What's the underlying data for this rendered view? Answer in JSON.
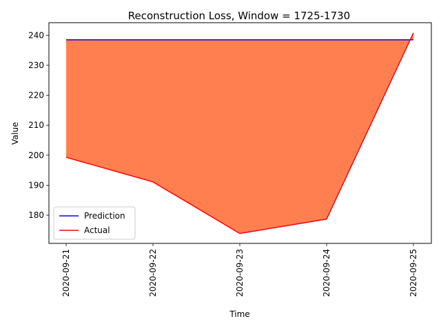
{
  "chart_data": {
    "type": "line",
    "title": "Reconstruction Loss, Window = 1725-1730",
    "xlabel": "Time",
    "ylabel": "Value",
    "x": [
      "2020-09-21",
      "2020-09-22",
      "2020-09-23",
      "2020-09-24",
      "2020-09-25"
    ],
    "series": [
      {
        "name": "Prediction",
        "color": "#0000ff",
        "values": [
          238.5,
          238.5,
          238.5,
          238.5,
          238.5
        ]
      },
      {
        "name": "Actual",
        "color": "#ff0000",
        "values": [
          199.3,
          191.1,
          173.9,
          178.7,
          240.8
        ]
      }
    ],
    "fill_between": {
      "color": "#ff7f50",
      "series": [
        "Prediction",
        "Actual"
      ]
    },
    "ylim": [
      170.6,
      244.2
    ],
    "yticks": [
      180,
      190,
      200,
      210,
      220,
      230,
      240
    ],
    "grid": false,
    "legend_position": "lower-left"
  }
}
